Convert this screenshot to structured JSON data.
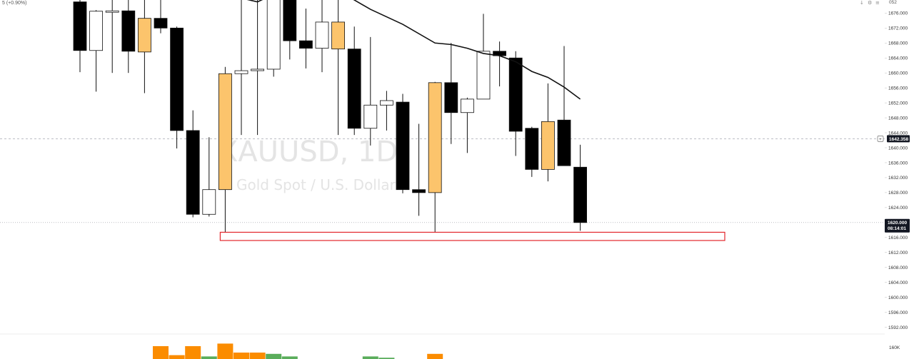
{
  "header": {
    "change_text": "5 (+0.90%)",
    "top_right_status": "052",
    "icons": [
      "arrow-down-icon",
      "settings-icon",
      "menu-icon"
    ]
  },
  "watermark": {
    "symbol": "XAUUSD, 1D",
    "description": "Gold Spot / U.S. Dollar"
  },
  "colors": {
    "bear_body": "#000000",
    "bull_body": "#ffffff",
    "highlight_body": "#fcc46c",
    "wick": "#111111",
    "ma_line": "#111111",
    "zone_stroke": "#e3262b",
    "vol_orange": "#fb8c00",
    "vol_green": "#5aad5b",
    "price_tag_bg": "#131722",
    "axis_text": "#333333"
  },
  "chart_data": {
    "type": "candlestick",
    "symbol": "XAUUSD",
    "interval": "1D",
    "ylim": [
      1588,
      1679.5
    ],
    "y_ticks": [
      1592,
      1596,
      1600,
      1604,
      1608,
      1612,
      1616,
      1620,
      1624,
      1628,
      1632,
      1636,
      1640,
      1644,
      1648,
      1652,
      1656,
      1660,
      1664,
      1668,
      1672,
      1676
    ],
    "y_tick_labels": [
      "1592.000",
      "1596.000",
      "1600.000",
      "1604.000",
      "1608.000",
      "1612.000",
      "1616.000",
      "1620.000",
      "1624.000",
      "1628.000",
      "1632.000",
      "1636.000",
      "1640.000",
      "1644.000",
      "1648.000",
      "1652.000",
      "1656.000",
      "1660.000",
      "1664.000",
      "1668.000",
      "1672.000",
      "1676.000"
    ],
    "grid": false,
    "candles": [
      {
        "i": 0,
        "o": 1679.0,
        "h": 1680.0,
        "l": 1660.2,
        "c": 1666.0,
        "color": "bear"
      },
      {
        "i": 1,
        "o": 1666.0,
        "h": 1676.8,
        "l": 1655.0,
        "c": 1676.5,
        "color": "bull"
      },
      {
        "i": 2,
        "o": 1676.6,
        "h": 1680.0,
        "l": 1660.0,
        "c": 1676.4,
        "color": "bull"
      },
      {
        "i": 3,
        "o": 1676.6,
        "h": 1680.0,
        "l": 1660.0,
        "c": 1665.8,
        "color": "bear"
      },
      {
        "i": 4,
        "o": 1665.6,
        "h": 1680.0,
        "l": 1654.6,
        "c": 1674.6,
        "color": "highlight"
      },
      {
        "i": 5,
        "o": 1674.6,
        "h": 1680.0,
        "l": 1670.6,
        "c": 1672.0,
        "color": "bear"
      },
      {
        "i": 6,
        "o": 1672.0,
        "h": 1672.4,
        "l": 1639.8,
        "c": 1644.6,
        "color": "bear"
      },
      {
        "i": 7,
        "o": 1644.6,
        "h": 1650.0,
        "l": 1621.4,
        "c": 1622.2,
        "color": "bear"
      },
      {
        "i": 8,
        "o": 1622.2,
        "h": 1642.8,
        "l": 1621.6,
        "c": 1628.8,
        "color": "bull"
      },
      {
        "i": 9,
        "o": 1628.8,
        "h": 1661.6,
        "l": 1617.4,
        "c": 1659.8,
        "color": "highlight"
      },
      {
        "i": 10,
        "o": 1659.8,
        "h": 1680.0,
        "l": 1643.4,
        "c": 1660.6,
        "color": "bull"
      },
      {
        "i": 11,
        "o": 1660.6,
        "h": 1680.0,
        "l": 1643.4,
        "c": 1661.0,
        "color": "bull"
      },
      {
        "i": 12,
        "o": 1661.0,
        "h": 1680.0,
        "l": 1659.0,
        "c": 1680.0,
        "color": "bull"
      },
      {
        "i": 13,
        "o": 1680.0,
        "h": 1680.0,
        "l": 1663.6,
        "c": 1668.6,
        "color": "bear"
      },
      {
        "i": 14,
        "o": 1668.6,
        "h": 1677.2,
        "l": 1661.2,
        "c": 1666.6,
        "color": "bear"
      },
      {
        "i": 15,
        "o": 1666.6,
        "h": 1680.0,
        "l": 1660.2,
        "c": 1673.6,
        "color": "bull"
      },
      {
        "i": 16,
        "o": 1673.6,
        "h": 1680.0,
        "l": 1643.4,
        "c": 1666.4,
        "color": "highlight"
      },
      {
        "i": 17,
        "o": 1666.4,
        "h": 1672.4,
        "l": 1643.4,
        "c": 1645.2,
        "color": "bear"
      },
      {
        "i": 18,
        "o": 1645.2,
        "h": 1669.6,
        "l": 1640.6,
        "c": 1651.4,
        "color": "bull"
      },
      {
        "i": 19,
        "o": 1651.4,
        "h": 1655.2,
        "l": 1644.6,
        "c": 1652.6,
        "color": "bull"
      },
      {
        "i": 20,
        "o": 1652.2,
        "h": 1654.4,
        "l": 1627.8,
        "c": 1628.8,
        "color": "bear"
      },
      {
        "i": 21,
        "o": 1628.8,
        "h": 1646.4,
        "l": 1621.8,
        "c": 1628.0,
        "color": "bear"
      },
      {
        "i": 22,
        "o": 1628.0,
        "h": 1657.6,
        "l": 1617.4,
        "c": 1657.4,
        "color": "highlight"
      },
      {
        "i": 23,
        "o": 1657.4,
        "h": 1668.0,
        "l": 1641.0,
        "c": 1649.4,
        "color": "bear"
      },
      {
        "i": 24,
        "o": 1649.4,
        "h": 1653.4,
        "l": 1638.6,
        "c": 1653.0,
        "color": "bull"
      },
      {
        "i": 25,
        "o": 1653.0,
        "h": 1675.8,
        "l": 1653.0,
        "c": 1665.8,
        "color": "bull"
      },
      {
        "i": 26,
        "o": 1665.8,
        "h": 1668.4,
        "l": 1656.4,
        "c": 1664.6,
        "color": "bear"
      },
      {
        "i": 27,
        "o": 1664.0,
        "h": 1665.8,
        "l": 1637.8,
        "c": 1644.4,
        "color": "bear"
      },
      {
        "i": 28,
        "o": 1645.2,
        "h": 1645.6,
        "l": 1632.2,
        "c": 1634.2,
        "color": "bear"
      },
      {
        "i": 29,
        "o": 1634.2,
        "h": 1657.2,
        "l": 1631.0,
        "c": 1647.0,
        "color": "highlight"
      },
      {
        "i": 30,
        "o": 1647.4,
        "h": 1667.2,
        "l": 1635.6,
        "c": 1635.2,
        "color": "bear"
      },
      {
        "i": 31,
        "o": 1634.8,
        "h": 1640.8,
        "l": 1617.8,
        "c": 1620.0,
        "color": "bear"
      }
    ],
    "moving_average": [
      {
        "i": 10,
        "v": 1680.0
      },
      {
        "i": 11,
        "v": 1679.0
      },
      {
        "i": 12,
        "v": 1681.0
      },
      {
        "i": 16,
        "v": 1682.0
      },
      {
        "i": 18,
        "v": 1677.0
      },
      {
        "i": 20,
        "v": 1673.0
      },
      {
        "i": 22,
        "v": 1668.0
      },
      {
        "i": 23,
        "v": 1667.6
      },
      {
        "i": 24,
        "v": 1666.6
      },
      {
        "i": 25,
        "v": 1665.2
      },
      {
        "i": 26,
        "v": 1664.6
      },
      {
        "i": 27,
        "v": 1663.0
      },
      {
        "i": 28,
        "v": 1660.4
      },
      {
        "i": 29,
        "v": 1658.8
      },
      {
        "i": 30,
        "v": 1656.2
      },
      {
        "i": 31,
        "v": 1653.0
      }
    ],
    "current_price": {
      "value": 1620.0,
      "label": "1620.000",
      "countdown": "08:14:01"
    },
    "crosshair_price": {
      "value": 1642.4,
      "label": "1642.358"
    },
    "support_zone": {
      "from_i": 9,
      "to_i": 35,
      "low": 1615.2,
      "high": 1617.4
    },
    "volume": {
      "axis_label": "160K",
      "bars": [
        {
          "i": 5,
          "v": 1.0,
          "color": "orange"
        },
        {
          "i": 6,
          "v": 0.3,
          "color": "orange"
        },
        {
          "i": 7,
          "v": 1.0,
          "color": "orange"
        },
        {
          "i": 8,
          "v": 0.2,
          "color": "green"
        },
        {
          "i": 9,
          "v": 1.2,
          "color": "orange"
        },
        {
          "i": 10,
          "v": 0.5,
          "color": "orange"
        },
        {
          "i": 11,
          "v": 0.5,
          "color": "orange"
        },
        {
          "i": 12,
          "v": 0.4,
          "color": "green"
        },
        {
          "i": 13,
          "v": 0.2,
          "color": "green"
        },
        {
          "i": 18,
          "v": 0.2,
          "color": "green"
        },
        {
          "i": 19,
          "v": 0.1,
          "color": "green"
        },
        {
          "i": 22,
          "v": 0.4,
          "color": "orange"
        }
      ]
    }
  }
}
